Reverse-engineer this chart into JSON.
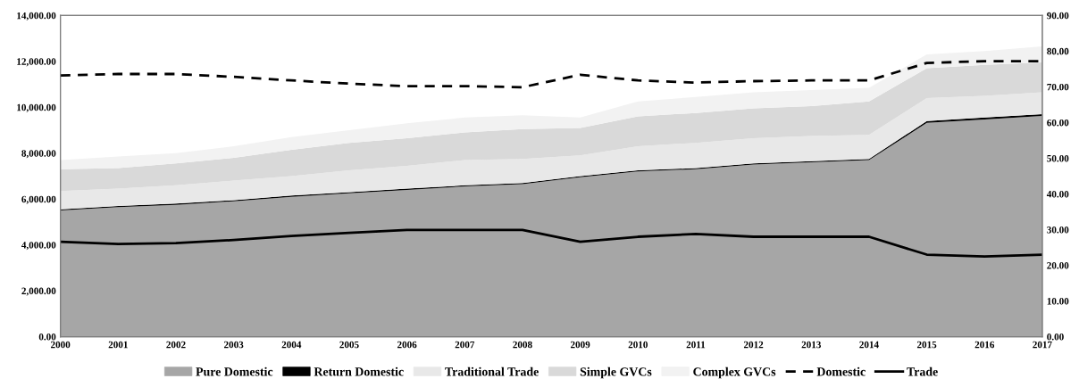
{
  "chart_data": {
    "type": "area",
    "stacked": true,
    "x": [
      2000,
      2001,
      2002,
      2003,
      2004,
      2005,
      2006,
      2007,
      2008,
      2009,
      2010,
      2011,
      2012,
      2013,
      2014,
      2015,
      2016,
      2017
    ],
    "series": [
      {
        "name": "Pure Domestic",
        "color": "#a6a6a6",
        "values": [
          5500,
          5650,
          5750,
          5900,
          6100,
          6250,
          6400,
          6550,
          6650,
          6950,
          7200,
          7300,
          7500,
          7600,
          7700,
          9320,
          9470,
          9620
        ]
      },
      {
        "name": "Return Domestic",
        "color": "#000000",
        "values": [
          50,
          50,
          50,
          50,
          50,
          50,
          50,
          50,
          50,
          50,
          50,
          50,
          50,
          50,
          50,
          80,
          80,
          80
        ]
      },
      {
        "name": "Traditional Trade",
        "color": "#e8e8e8",
        "values": [
          800,
          750,
          800,
          850,
          850,
          950,
          1000,
          1100,
          1050,
          900,
          1050,
          1100,
          1100,
          1100,
          1050,
          1000,
          950,
          950
        ]
      },
      {
        "name": "Simple GVCs",
        "color": "#d9d9d9",
        "values": [
          950,
          900,
          950,
          1000,
          1150,
          1200,
          1200,
          1200,
          1300,
          1200,
          1300,
          1300,
          1300,
          1300,
          1450,
          1300,
          1350,
          1300
        ]
      },
      {
        "name": "Complex GVCs",
        "color": "#f2f2f2",
        "values": [
          400,
          500,
          450,
          500,
          550,
          550,
          650,
          650,
          600,
          450,
          650,
          700,
          700,
          700,
          600,
          600,
          600,
          700
        ]
      },
      {
        "name": "Domestic",
        "type": "line",
        "axis": "y2",
        "line_style": "dashed",
        "color": "#000000",
        "values": [
          73.2,
          73.6,
          73.6,
          72.8,
          71.8,
          70.9,
          70.2,
          70.2,
          69.9,
          73.4,
          71.8,
          71.2,
          71.6,
          71.8,
          71.8,
          76.7,
          77.2,
          77.2
        ]
      },
      {
        "name": "Trade",
        "type": "line",
        "axis": "y2",
        "line_style": "solid",
        "color": "#000000",
        "values": [
          26.6,
          26.0,
          26.2,
          27.1,
          28.2,
          29.1,
          29.9,
          29.9,
          29.9,
          26.6,
          28.0,
          28.8,
          28.0,
          28.0,
          28.0,
          23.0,
          22.5,
          23.0
        ]
      }
    ],
    "xlim": [
      2000,
      2017
    ],
    "xticks": [
      2000,
      2001,
      2002,
      2003,
      2004,
      2005,
      2006,
      2007,
      2008,
      2009,
      2010,
      2011,
      2012,
      2013,
      2014,
      2015,
      2016,
      2017
    ],
    "ylim": [
      0,
      14000
    ],
    "yticks": [
      {
        "value": 0,
        "label": "0.00"
      },
      {
        "value": 2000,
        "label": "2,000.00"
      },
      {
        "value": 4000,
        "label": "4,000.00"
      },
      {
        "value": 6000,
        "label": "6,000.00"
      },
      {
        "value": 8000,
        "label": "8,000.00"
      },
      {
        "value": 10000,
        "label": "10,000.00"
      },
      {
        "value": 12000,
        "label": "12,000.00"
      },
      {
        "value": 14000,
        "label": "14,000.00"
      }
    ],
    "y2lim": [
      0,
      90
    ],
    "y2ticks": [
      {
        "value": 0,
        "label": "0.00"
      },
      {
        "value": 10,
        "label": "10.00"
      },
      {
        "value": 20,
        "label": "20.00"
      },
      {
        "value": 30,
        "label": "30.00"
      },
      {
        "value": 40,
        "label": "40.00"
      },
      {
        "value": 50,
        "label": "50.00"
      },
      {
        "value": 60,
        "label": "60.00"
      },
      {
        "value": 70,
        "label": "70.00"
      },
      {
        "value": 80,
        "label": "80.00"
      },
      {
        "value": 90,
        "label": "90.00"
      }
    ],
    "grid": false,
    "legend": "bottom"
  }
}
